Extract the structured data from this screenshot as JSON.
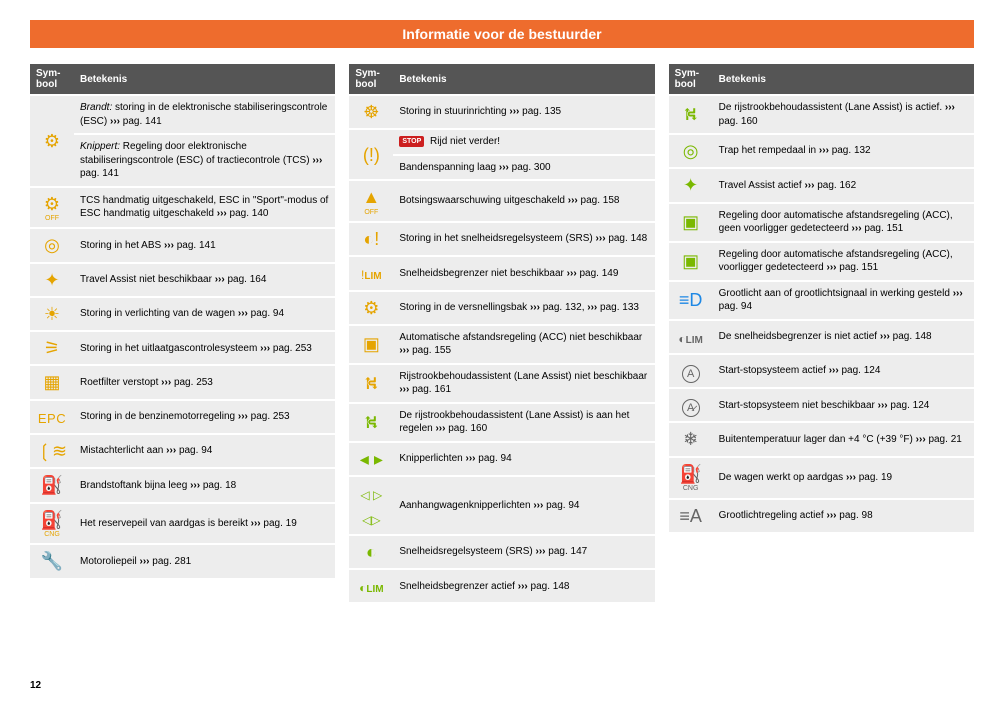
{
  "title": "Informatie voor de bestuurder",
  "page_number": "12",
  "headers": {
    "symbol": "Sym-\nbool",
    "meaning": "Betekenis"
  },
  "arrows": "›››",
  "pag": "pag.",
  "columns": [
    [
      {
        "icon": "⚙",
        "color": "amber",
        "rowspan": 2,
        "pre": "Brandt:",
        "text": " storing in de elektronische stabiliseringscontrole (ESC) ",
        "page": "141"
      },
      {
        "pre": "Knippert:",
        "text": " Regeling door elektronische stabiliseringscontrole (ESC) of tractiecontrole (TCS) ",
        "page": "141"
      },
      {
        "icon": "⚙",
        "sub": "OFF",
        "color": "amber",
        "text": "TCS handmatig uitgeschakeld, ESC in \"Sport\"-modus of ESC handmatig uitgeschakeld ",
        "page": "140"
      },
      {
        "icon": "◎",
        "color": "amber",
        "text": "Storing in het ABS ",
        "page": "141"
      },
      {
        "icon": "✦",
        "color": "amber",
        "text": "Travel Assist niet beschikbaar ",
        "page": "164"
      },
      {
        "icon": "☀",
        "color": "amber",
        "text": "Storing in verlichting van de wagen ",
        "page": "94"
      },
      {
        "icon": "⚞",
        "color": "amber",
        "text": "Storing in het uitlaatgascontrolesysteem ",
        "page": "253"
      },
      {
        "icon": "▦",
        "color": "amber",
        "text": "Roetfilter verstopt ",
        "page": "253"
      },
      {
        "icon": "EPC",
        "epc": true,
        "text": "Storing in de benzinemotorregeling ",
        "page": "253"
      },
      {
        "icon": "❲≋",
        "color": "amber",
        "text": "Mistachterlicht aan ",
        "page": "94"
      },
      {
        "icon": "⛽",
        "color": "amber",
        "text": "Brandstoftank bijna leeg ",
        "page": "18"
      },
      {
        "icon": "⛽",
        "sub": "CNG",
        "color": "amber",
        "text": "Het reservepeil van aardgas is bereikt ",
        "page": "19"
      },
      {
        "icon": "🔧",
        "color": "amber",
        "text": "Motoroliepeil ",
        "page": "281"
      }
    ],
    [
      {
        "icon": "☸",
        "color": "amber",
        "text": "Storing in stuurinrichting ",
        "page": "135"
      },
      {
        "icon": "(!)",
        "color": "amber",
        "rowspan": 2,
        "stop": "STOP",
        "text": " Rijd niet verder!",
        "nopage": true
      },
      {
        "text": "Bandenspanning laag ",
        "page": "300"
      },
      {
        "icon": "▲",
        "sub": "OFF",
        "color": "amber",
        "text": "Botsingswaarschuwing uitgeschakeld ",
        "page": "158"
      },
      {
        "icon": "◐!",
        "color": "amber",
        "text": "Storing in het snelheidsregelsysteem (SRS) ",
        "page": "148"
      },
      {
        "icon": "!",
        "lim": "LIM",
        "color": "amber",
        "text": "Snelheidsbegrenzer niet beschikbaar ",
        "page": "149"
      },
      {
        "icon": "⚙",
        "color": "amber",
        "text": "Storing in de versnellingsbak ",
        "page": "132",
        "extra_page": "133"
      },
      {
        "icon": "▣",
        "color": "amber",
        "text": "Automatische afstandsregeling (ACC) niet beschikbaar ",
        "page": "155"
      },
      {
        "icon": "⛕",
        "color": "amber",
        "text": "Rijstrookbehoudassistent (Lane Assist) niet beschikbaar ",
        "page": "161"
      },
      {
        "icon": "⛕",
        "color": "green",
        "text": "De rijstrookbehoudassistent (Lane Assist) is aan het regelen ",
        "page": "160"
      },
      {
        "icon": "turn",
        "color": "green",
        "text": "Knipperlichten ",
        "page": "94"
      },
      {
        "icon": "trailer",
        "color": "green",
        "text": "Aanhangwagenknipperlichten ",
        "page": "94"
      },
      {
        "icon": "◐",
        "color": "green",
        "text": "Snelheidsregelsysteem (SRS) ",
        "page": "147"
      },
      {
        "icon": "◐",
        "lim": "LIM",
        "color": "green",
        "text": "Snelheidsbegrenzer actief ",
        "page": "148"
      }
    ],
    [
      {
        "icon": "⛕",
        "color": "green",
        "text": "De rijstrookbehoudassistent (Lane Assist) is actief. ",
        "page": "160"
      },
      {
        "icon": "◎",
        "color": "green",
        "text": "Trap het rempedaal in ",
        "page": "132"
      },
      {
        "icon": "✦",
        "color": "green",
        "text": "Travel Assist actief ",
        "page": "162"
      },
      {
        "icon": "▣",
        "color": "green",
        "text": "Regeling door automatische afstandsregeling (ACC), geen voorligger gedetecteerd ",
        "page": "151"
      },
      {
        "icon": "▣",
        "color": "green",
        "text": "Regeling door automatische afstandsregeling (ACC), voorligger gedetecteerd ",
        "page": "151"
      },
      {
        "icon": "≡D",
        "color": "blue",
        "text": "Grootlicht aan of grootlichtsignaal in werking gesteld ",
        "page": "94"
      },
      {
        "icon": "◐",
        "lim": "LIM",
        "color": "white",
        "text": "De snelheidsbegrenzer is niet actief ",
        "page": "148"
      },
      {
        "icon": "A",
        "circled": true,
        "color": "white",
        "text": "Start-stopsysteem actief ",
        "page": "124"
      },
      {
        "icon": "A̷",
        "circled": true,
        "color": "white",
        "text": "Start-stopsysteem niet beschikbaar ",
        "page": "124"
      },
      {
        "icon": "❄",
        "color": "white",
        "text": "Buitentemperatuur lager dan +4 °C (+39 °F) ",
        "page": "21"
      },
      {
        "icon": "⛽",
        "sub": "CNG",
        "color": "white",
        "text": "De wagen werkt op aardgas ",
        "page": "19"
      },
      {
        "icon": "≡A",
        "color": "white",
        "text": "Grootlichtregeling actief ",
        "page": "98"
      }
    ]
  ]
}
